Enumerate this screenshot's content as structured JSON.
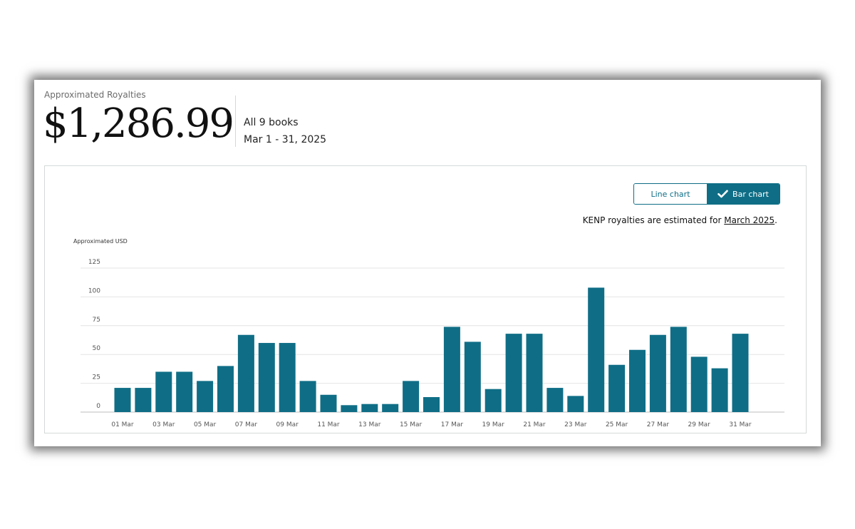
{
  "summary": {
    "label": "Approximated Royalties",
    "total": "$1,286.99",
    "scope": "All 9 books",
    "period": "Mar 1 - 31, 2025"
  },
  "toggle": {
    "line_label": "Line chart",
    "bar_label": "Bar chart",
    "selected": "Bar chart"
  },
  "note": {
    "prefix": "KENP royalties are estimated for ",
    "link": "March 2025",
    "suffix": "."
  },
  "colors": {
    "accent": "#0f6e86",
    "bar": "#0f6e86"
  },
  "chart_data": {
    "type": "bar",
    "ylabel": "Approximated USD",
    "xlabel": "",
    "ylim": [
      0,
      125
    ],
    "yticks": [
      0,
      25,
      50,
      75,
      100,
      125
    ],
    "grid": true,
    "categories": [
      "01 Mar",
      "02 Mar",
      "03 Mar",
      "04 Mar",
      "05 Mar",
      "06 Mar",
      "07 Mar",
      "08 Mar",
      "09 Mar",
      "10 Mar",
      "11 Mar",
      "12 Mar",
      "13 Mar",
      "14 Mar",
      "15 Mar",
      "16 Mar",
      "17 Mar",
      "18 Mar",
      "19 Mar",
      "20 Mar",
      "21 Mar",
      "22 Mar",
      "23 Mar",
      "24 Mar",
      "25 Mar",
      "26 Mar",
      "27 Mar",
      "28 Mar",
      "29 Mar",
      "30 Mar",
      "31 Mar"
    ],
    "tick_labels": [
      "01 Mar",
      "03 Mar",
      "05 Mar",
      "07 Mar",
      "09 Mar",
      "11 Mar",
      "13 Mar",
      "15 Mar",
      "17 Mar",
      "19 Mar",
      "21 Mar",
      "23 Mar",
      "25 Mar",
      "27 Mar",
      "29 Mar",
      "31 Mar"
    ],
    "values": [
      21,
      21,
      35,
      35,
      27,
      40,
      67,
      60,
      60,
      27,
      15,
      6,
      7,
      7,
      27,
      13,
      74,
      61,
      20,
      68,
      68,
      21,
      14,
      108,
      41,
      54,
      67,
      74,
      48,
      38,
      68
    ]
  }
}
